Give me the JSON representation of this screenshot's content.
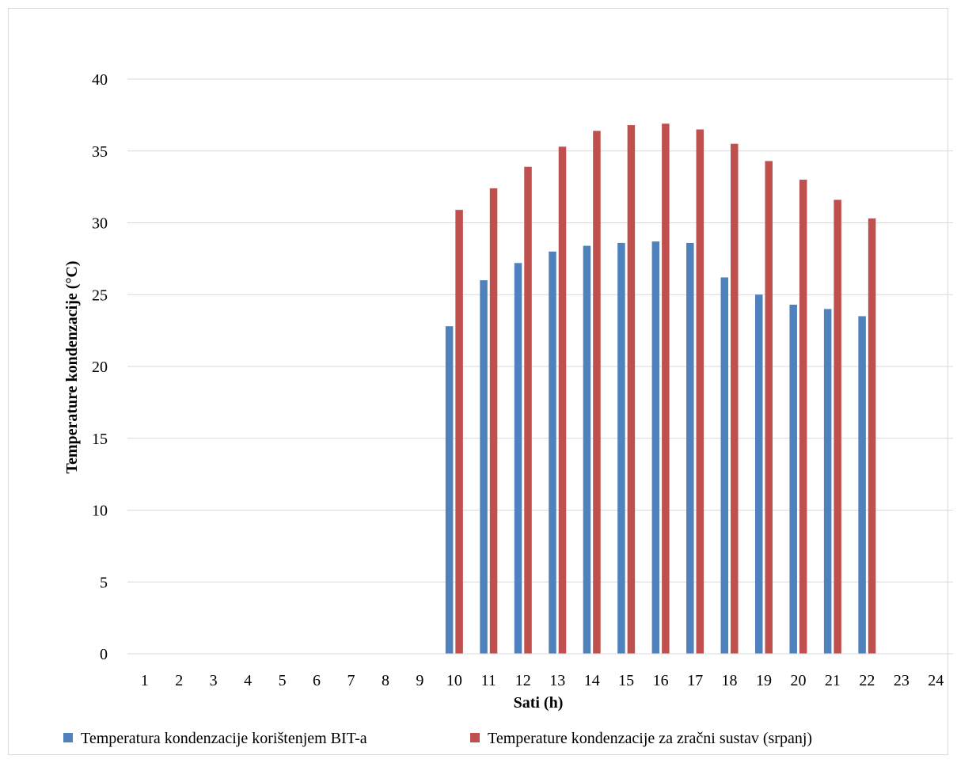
{
  "chart_data": {
    "type": "bar",
    "title": "",
    "xlabel": "Sati (h)",
    "ylabel": "Temperature kondenzacije (°C)",
    "ylim": [
      0,
      40
    ],
    "yticks": [
      0,
      5,
      10,
      15,
      20,
      25,
      30,
      35,
      40
    ],
    "grid": true,
    "legend_position": "bottom",
    "categories": [
      "1",
      "2",
      "3",
      "4",
      "5",
      "6",
      "7",
      "8",
      "9",
      "10",
      "11",
      "12",
      "13",
      "14",
      "15",
      "16",
      "17",
      "18",
      "19",
      "20",
      "21",
      "22",
      "23",
      "24"
    ],
    "series": [
      {
        "name": "Temperatura kondenzacije korištenjem BIT-a",
        "color": "#4f81bd",
        "values": [
          0,
          0,
          0,
          0,
          0,
          0,
          0,
          0,
          0,
          22.8,
          26.0,
          27.2,
          28.0,
          28.4,
          28.6,
          28.7,
          28.6,
          26.2,
          25.0,
          24.3,
          24.0,
          23.5,
          0,
          0
        ]
      },
      {
        "name": "Temperature kondenzacije za zračni sustav (srpanj)",
        "color": "#c0504d",
        "values": [
          0,
          0,
          0,
          0,
          0,
          0,
          0,
          0,
          0,
          30.9,
          32.4,
          33.9,
          35.3,
          36.4,
          36.8,
          36.9,
          36.5,
          35.5,
          34.3,
          33.0,
          31.6,
          30.3,
          0,
          0
        ]
      }
    ]
  }
}
